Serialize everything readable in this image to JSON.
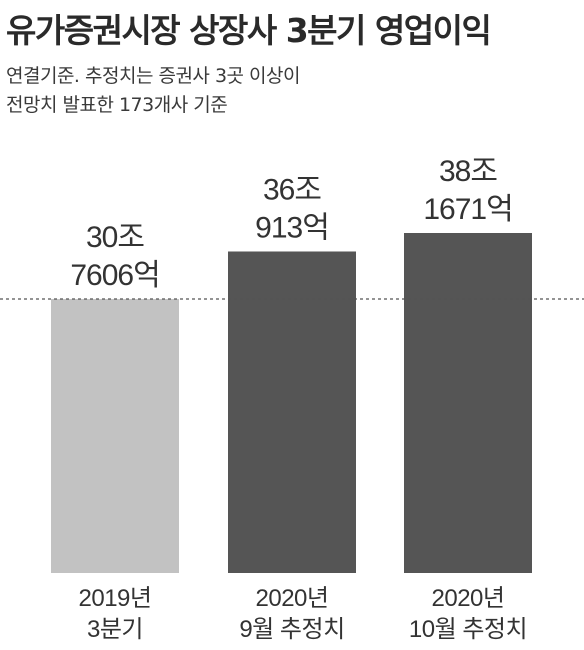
{
  "chart_data": {
    "type": "bar",
    "title": "유가증권시장 상장사 3분기 영업이익",
    "subtitle_lines": [
      "연결기준. 추정치는 증권사 3곳 이상이",
      "전망치 발표한 173개사 기준"
    ],
    "categories": [
      [
        "2019년",
        "3분기"
      ],
      [
        "2020년",
        "9월 추정치"
      ],
      [
        "2020년",
        "10월 추정치"
      ]
    ],
    "values": [
      30.7606,
      36.0913,
      38.1671
    ],
    "value_labels": [
      [
        "30조",
        "7606억"
      ],
      [
        "36조",
        "913억"
      ],
      [
        "38조",
        "1671억"
      ]
    ],
    "unit": "조원",
    "colors": [
      "#c2c2c2",
      "#555555",
      "#555555"
    ],
    "reference_line": {
      "value": 30.7606,
      "style": "dashed"
    },
    "ylim": [
      0,
      38.1671
    ],
    "grid": false,
    "legend": "none"
  }
}
